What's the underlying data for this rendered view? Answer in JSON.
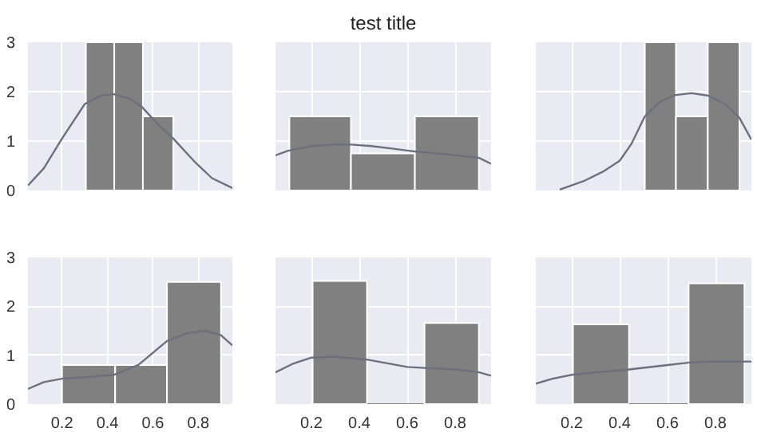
{
  "chart_data": [
    {
      "type": "histogram",
      "bins": [
        0.305,
        0.43,
        0.556,
        0.69
      ],
      "values": [
        3,
        3,
        1.5
      ],
      "color": "#808080",
      "xlim": [
        0.05,
        0.95
      ],
      "ylim": [
        0,
        3
      ],
      "xticks": [
        {
          "value": 0.2,
          "label": null
        },
        {
          "value": 0.4,
          "label": null
        },
        {
          "value": 0.6,
          "label": null
        },
        {
          "value": 0.8,
          "label": null
        }
      ],
      "yticks": [
        0,
        1,
        2,
        3
      ],
      "grid": true,
      "tick_labels": "y",
      "series": [
        {
          "type": "line",
          "color": "#6e6e7e",
          "x": [
            0.05,
            0.12,
            0.2,
            0.3,
            0.37,
            0.43,
            0.5,
            0.55,
            0.62,
            0.69,
            0.78,
            0.86,
            0.95
          ],
          "values": [
            0.1,
            0.45,
            1.05,
            1.75,
            1.92,
            1.95,
            1.85,
            1.7,
            1.35,
            1.05,
            0.6,
            0.25,
            0.05
          ]
        }
      ]
    },
    {
      "type": "histogram",
      "title": "test title",
      "bins": [
        0.108,
        0.365,
        0.632,
        0.899
      ],
      "values": [
        1.5,
        0.75,
        1.5
      ],
      "color": "#808080",
      "xlim": [
        0.05,
        0.95
      ],
      "ylim": [
        0,
        3
      ],
      "xticks": [
        {
          "value": 0.2,
          "label": null
        },
        {
          "value": 0.4,
          "label": null
        },
        {
          "value": 0.6,
          "label": null
        },
        {
          "value": 0.8,
          "label": null
        }
      ],
      "yticks": [
        {
          "value": 0,
          "label": null
        },
        {
          "value": 1,
          "label": null
        },
        {
          "value": 2,
          "label": null
        },
        {
          "value": 3,
          "label": null
        }
      ],
      "grid": true,
      "tick_labels": false,
      "series": [
        {
          "type": "line",
          "color": "#6e6e7e",
          "x": [
            0.05,
            0.1,
            0.2,
            0.3,
            0.365,
            0.45,
            0.55,
            0.63,
            0.75,
            0.9,
            0.95
          ],
          "values": [
            0.71,
            0.8,
            0.9,
            0.93,
            0.93,
            0.9,
            0.84,
            0.79,
            0.74,
            0.66,
            0.54
          ]
        }
      ]
    },
    {
      "type": "histogram",
      "bins": [
        0.505,
        0.635,
        0.768,
        0.9
      ],
      "values": [
        3,
        1.5,
        3
      ],
      "color": "#808080",
      "xlim": [
        0.05,
        0.95
      ],
      "ylim": [
        0,
        3
      ],
      "xticks": [
        {
          "value": 0.2,
          "label": null
        },
        {
          "value": 0.4,
          "label": null
        },
        {
          "value": 0.6,
          "label": null
        },
        {
          "value": 0.8,
          "label": null
        }
      ],
      "yticks": [
        {
          "value": 0,
          "label": null
        },
        {
          "value": 1,
          "label": null
        },
        {
          "value": 2,
          "label": null
        },
        {
          "value": 3,
          "label": null
        }
      ],
      "grid": true,
      "tick_labels": false,
      "series": [
        {
          "type": "line",
          "color": "#6e6e7e",
          "x": [
            0.15,
            0.25,
            0.33,
            0.4,
            0.45,
            0.505,
            0.57,
            0.63,
            0.7,
            0.77,
            0.84,
            0.9,
            0.95
          ],
          "values": [
            0.02,
            0.19,
            0.38,
            0.6,
            0.95,
            1.5,
            1.8,
            1.93,
            1.97,
            1.92,
            1.75,
            1.47,
            1.03
          ]
        }
      ]
    },
    {
      "type": "histogram",
      "bins": [
        0.2,
        0.434,
        0.662,
        0.9
      ],
      "values": [
        0.8,
        0.8,
        2.5
      ],
      "color": "#808080",
      "xlim": [
        0.05,
        0.95
      ],
      "ylim": [
        0,
        3
      ],
      "xticks": [
        0.2,
        0.4,
        0.6,
        0.8
      ],
      "yticks": [
        0,
        1,
        2,
        3
      ],
      "grid": true,
      "series": [
        {
          "type": "line",
          "color": "#6e6e7e",
          "x": [
            0.05,
            0.12,
            0.2,
            0.3,
            0.43,
            0.536,
            0.6,
            0.662,
            0.75,
            0.83,
            0.9,
            0.95
          ],
          "values": [
            0.31,
            0.45,
            0.52,
            0.55,
            0.6,
            0.8,
            1.05,
            1.29,
            1.45,
            1.5,
            1.41,
            1.2
          ]
        }
      ]
    },
    {
      "type": "histogram",
      "bins": [
        0.205,
        0.432,
        0.672,
        0.899
      ],
      "values": [
        2.52,
        0,
        1.66
      ],
      "color": "#808080",
      "xlim": [
        0.05,
        0.95
      ],
      "ylim": [
        0,
        3
      ],
      "xticks": [
        0.2,
        0.4,
        0.6,
        0.8
      ],
      "yticks": [
        {
          "value": 0,
          "label": null
        },
        {
          "value": 1,
          "label": null
        },
        {
          "value": 2,
          "label": null
        },
        {
          "value": 3,
          "label": null
        }
      ],
      "grid": true,
      "tick_labels": "x",
      "series": [
        {
          "type": "line",
          "color": "#6e6e7e",
          "x": [
            0.05,
            0.12,
            0.2,
            0.3,
            0.432,
            0.6,
            0.672,
            0.8,
            0.9,
            0.95
          ],
          "values": [
            0.65,
            0.82,
            0.95,
            0.97,
            0.91,
            0.76,
            0.74,
            0.71,
            0.65,
            0.58
          ]
        }
      ]
    },
    {
      "type": "histogram",
      "bins": [
        0.205,
        0.439,
        0.688,
        0.921
      ],
      "values": [
        1.63,
        0,
        2.47
      ],
      "color": "#808080",
      "xlim": [
        0.05,
        0.95
      ],
      "ylim": [
        0,
        3
      ],
      "xticks": [
        0.2,
        0.4,
        0.6,
        0.8
      ],
      "yticks": [
        {
          "value": 0,
          "label": null
        },
        {
          "value": 1,
          "label": null
        },
        {
          "value": 2,
          "label": null
        },
        {
          "value": 3,
          "label": null
        }
      ],
      "grid": true,
      "tick_labels": "x",
      "series": [
        {
          "type": "line",
          "color": "#6e6e7e",
          "x": [
            0.05,
            0.12,
            0.2,
            0.3,
            0.44,
            0.6,
            0.69,
            0.8,
            0.95
          ],
          "values": [
            0.42,
            0.52,
            0.6,
            0.65,
            0.71,
            0.8,
            0.85,
            0.87,
            0.87
          ]
        }
      ]
    }
  ]
}
